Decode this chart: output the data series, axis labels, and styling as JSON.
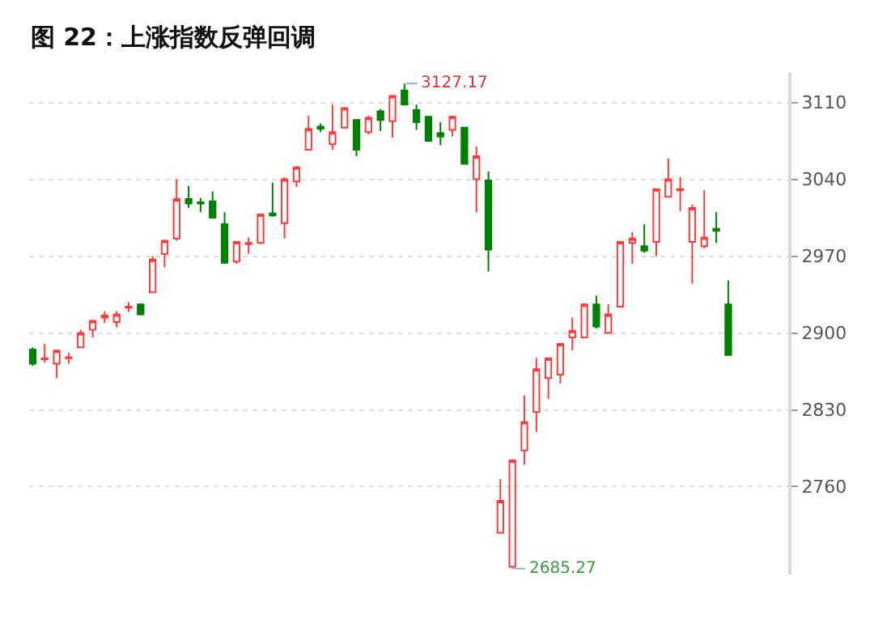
{
  "chart_data": {
    "type": "candlestick",
    "title": "图 22：上涨指数反弹回调",
    "categories": [
      null,
      null,
      null,
      null,
      null,
      null,
      null,
      null,
      null,
      null,
      null,
      null,
      null,
      null,
      null,
      null,
      null,
      null,
      null,
      null,
      null,
      null,
      null,
      null,
      null,
      null,
      null,
      null,
      null,
      null,
      null,
      null,
      null,
      null,
      null,
      null,
      null,
      null,
      null,
      null,
      null,
      null,
      null,
      null,
      null,
      null,
      null,
      null,
      null,
      null,
      null,
      null,
      null,
      null,
      null,
      null,
      null,
      null,
      null
    ],
    "ohlc": [
      [
        2885,
        2887,
        2870,
        2872
      ],
      [
        2876,
        2890,
        2873,
        2877
      ],
      [
        2872,
        2885,
        2859,
        2884
      ],
      [
        2877,
        2882,
        2872,
        2878
      ],
      [
        2887,
        2903,
        2887,
        2900
      ],
      [
        2903,
        2912,
        2896,
        2911
      ],
      [
        2914,
        2920,
        2909,
        2916
      ],
      [
        2910,
        2920,
        2905,
        2917
      ],
      [
        2923,
        2928,
        2919,
        2924
      ],
      [
        2926,
        2927,
        2916,
        2917
      ],
      [
        2937,
        2970,
        2937,
        2967
      ],
      [
        2972,
        2985,
        2960,
        2984
      ],
      [
        2986,
        3040,
        2984,
        3022
      ],
      [
        3022,
        3034,
        3014,
        3018
      ],
      [
        3019,
        3023,
        3010,
        3018
      ],
      [
        3020,
        3029,
        3005,
        3005
      ],
      [
        2999,
        3010,
        2963,
        2964
      ],
      [
        2965,
        2983,
        2963,
        2983
      ],
      [
        2981,
        2987,
        2972,
        2982
      ],
      [
        2982,
        3009,
        2981,
        3008
      ],
      [
        3009,
        3037,
        3006,
        3007
      ],
      [
        3000,
        3042,
        2986,
        3040
      ],
      [
        3038,
        3052,
        3033,
        3051
      ],
      [
        3067,
        3098,
        3067,
        3086
      ],
      [
        3088,
        3091,
        3083,
        3086
      ],
      [
        3072,
        3108,
        3067,
        3083
      ],
      [
        3087,
        3105,
        3087,
        3105
      ],
      [
        3094,
        3094,
        3061,
        3067
      ],
      [
        3083,
        3098,
        3081,
        3096
      ],
      [
        3102,
        3104,
        3084,
        3094
      ],
      [
        3093,
        3116,
        3078,
        3116
      ],
      [
        3121,
        3127.17,
        3108,
        3108
      ],
      [
        3103,
        3108,
        3085,
        3092
      ],
      [
        3097,
        3097,
        3074,
        3075
      ],
      [
        3082,
        3092,
        3071,
        3079
      ],
      [
        3085,
        3098,
        3079,
        3097
      ],
      [
        3087,
        3087,
        3054,
        3054
      ],
      [
        3040,
        3070,
        3010,
        3061
      ],
      [
        3039,
        3047,
        2956,
        2976
      ],
      [
        2718,
        2767,
        2718,
        2747
      ],
      [
        2687,
        2785,
        2685.27,
        2784
      ],
      [
        2793,
        2843,
        2780,
        2819
      ],
      [
        2828,
        2877,
        2810,
        2867
      ],
      [
        2859,
        2877,
        2840,
        2877
      ],
      [
        2862,
        2890,
        2854,
        2890
      ],
      [
        2896,
        2914,
        2884,
        2902
      ],
      [
        2896,
        2927,
        2895,
        2926
      ],
      [
        2926,
        2934,
        2904,
        2906
      ],
      [
        2900,
        2926,
        2900,
        2917
      ],
      [
        2924,
        2983,
        2924,
        2983
      ],
      [
        2982,
        2992,
        2963,
        2986
      ],
      [
        2979,
        2999,
        2973,
        2975
      ],
      [
        2983,
        3031,
        2970,
        3031
      ],
      [
        3024,
        3059,
        3024,
        3040
      ],
      [
        3030,
        3042,
        3011,
        3031
      ],
      [
        2983,
        3017,
        2945,
        3014
      ],
      [
        2979,
        3030,
        2977,
        2987
      ],
      [
        2995,
        3010,
        2982,
        2993
      ],
      [
        2926,
        2948,
        2880,
        2880
      ]
    ],
    "colors": [
      "#008000",
      "#ff3b3b",
      "#ff3b3b",
      "#ff3b3b",
      "#ff3b3b",
      "#ff3b3b",
      "#ff3b3b",
      "#ff3b3b",
      "#ff3b3b",
      "#008000",
      "#ff3b3b",
      "#ff3b3b",
      "#ff3b3b",
      "#008000",
      "#008000",
      "#008000",
      "#008000",
      "#ff3b3b",
      "#ff3b3b",
      "#ff3b3b",
      "#008000",
      "#ff3b3b",
      "#ff3b3b",
      "#ff3b3b",
      "#008000",
      "#ff3b3b",
      "#ff3b3b",
      "#008000",
      "#ff3b3b",
      "#008000",
      "#ff3b3b",
      "#008000",
      "#008000",
      "#008000",
      "#008000",
      "#ff3b3b",
      "#008000",
      "#ff3b3b",
      "#008000",
      "#ff3b3b",
      "#ff3b3b",
      "#ff3b3b",
      "#ff3b3b",
      "#ff3b3b",
      "#ff3b3b",
      "#ff3b3b",
      "#ff3b3b",
      "#008000",
      "#ff3b3b",
      "#ff3b3b",
      "#ff3b3b",
      "#008000",
      "#ff3b3b",
      "#ff3b3b",
      "#ff3b3b",
      "#ff3b3b",
      "#ff3b3b",
      "#008000",
      "#008000"
    ],
    "ylim": [
      2680,
      3137
    ],
    "yticks": [
      2760,
      2830,
      2900,
      2970,
      3040,
      3110
    ],
    "grid": "y",
    "annotations": [
      "3127.17",
      "2685.27"
    ]
  }
}
